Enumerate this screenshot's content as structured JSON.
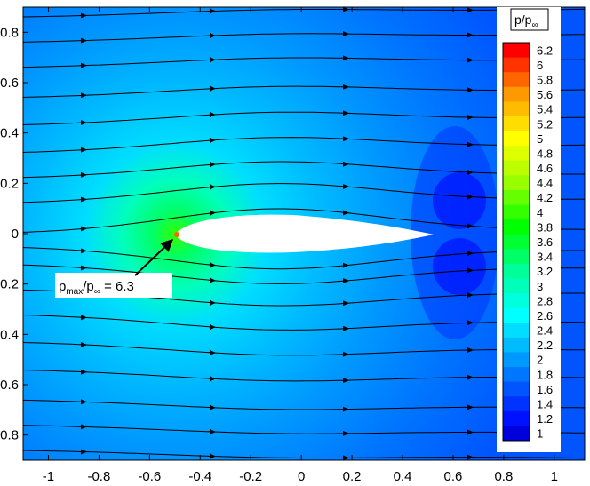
{
  "chart_data": {
    "type": "heatmap",
    "title": "",
    "xlabel": "",
    "ylabel": "",
    "xlim": [
      -1.1,
      1.12
    ],
    "ylim": [
      -0.9,
      0.9
    ],
    "x_ticks": [
      "-1",
      "-0.8",
      "-0.6",
      "-0.4",
      "-0.2",
      "0",
      "0.2",
      "0.4",
      "0.6",
      "0.8",
      "1"
    ],
    "x_tick_values": [
      -1,
      -0.8,
      -0.6,
      -0.4,
      -0.2,
      0,
      0.2,
      0.4,
      0.6,
      0.8,
      1
    ],
    "y_ticks": [
      "-0.8",
      "-0.6",
      "-0.4",
      "-0.2",
      "0",
      "0.2",
      "0.4",
      "0.6",
      "0.8"
    ],
    "y_tick_values": [
      -0.8,
      -0.6,
      -0.4,
      -0.2,
      0,
      0.2,
      0.4,
      0.6,
      0.8
    ],
    "grid": false,
    "field": {
      "variable": "p/p∞",
      "min": 1.0,
      "max": 6.3,
      "stagnation_point": {
        "x": -0.5,
        "y": 0.0
      },
      "airfoil_chord": {
        "x_start": -0.5,
        "x_end": 0.5
      }
    },
    "colorbar": {
      "title_main": "p/p",
      "title_sub": "∞",
      "placement": "right",
      "levels": [
        "6.2",
        "6",
        "5.8",
        "5.6",
        "5.4",
        "5.2",
        "5",
        "4.8",
        "4.6",
        "4.4",
        "4.2",
        "4",
        "3.8",
        "3.6",
        "3.4",
        "3.2",
        "3",
        "2.8",
        "2.6",
        "2.4",
        "2.2",
        "2",
        "1.8",
        "1.6",
        "1.4",
        "1.2",
        "1"
      ],
      "colors": [
        "#ff0000",
        "#ff3300",
        "#ff6600",
        "#ff9900",
        "#ffbb00",
        "#ffdd00",
        "#ffff00",
        "#ddff00",
        "#bbff00",
        "#99ff00",
        "#66ff00",
        "#33ff00",
        "#00ff00",
        "#00ff33",
        "#00ff66",
        "#00ff99",
        "#00ffbb",
        "#00ffdd",
        "#00ffff",
        "#00ddff",
        "#00bbff",
        "#0099ff",
        "#0077ff",
        "#0055ff",
        "#0033ff",
        "#0011ff",
        "#0000dd"
      ]
    },
    "annotation": {
      "p": "p",
      "max": "max",
      "slash": "/p",
      "inf": "∞",
      "equals": " = 6.3"
    },
    "streamlines_y0": [
      0.86,
      0.76,
      0.66,
      0.54,
      0.43,
      0.32,
      0.22,
      0.12,
      0.0,
      -0.05,
      -0.12,
      -0.22,
      -0.32,
      -0.43,
      -0.54,
      -0.66,
      -0.76,
      -0.86
    ]
  }
}
